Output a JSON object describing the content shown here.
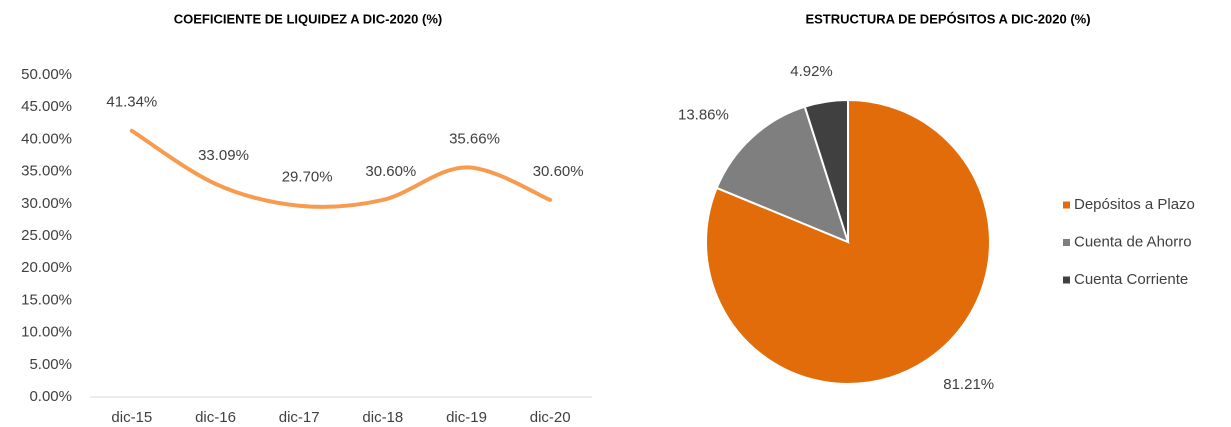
{
  "chart_data": [
    {
      "type": "line",
      "title": "COEFICIENTE DE LIQUIDEZ A DIC-2020 (%)",
      "categories": [
        "dic-15",
        "dic-16",
        "dic-17",
        "dic-18",
        "dic-19",
        "dic-20"
      ],
      "values": [
        41.34,
        33.09,
        29.7,
        30.6,
        35.66,
        30.6
      ],
      "value_labels": [
        "41.34%",
        "33.09%",
        "29.70%",
        "30.60%",
        "35.66%",
        "30.60%"
      ],
      "color": "#f79b4f",
      "smooth": true,
      "ylim": [
        0,
        50
      ],
      "yticks": [
        {
          "value": 0,
          "label": "0.00%"
        },
        {
          "value": 5,
          "label": "5.00%"
        },
        {
          "value": 10,
          "label": "10.00%"
        },
        {
          "value": 15,
          "label": "15.00%"
        },
        {
          "value": 20,
          "label": "20.00%"
        },
        {
          "value": 25,
          "label": "25.00%"
        },
        {
          "value": 30,
          "label": "30.00%"
        },
        {
          "value": 35,
          "label": "35.00%"
        },
        {
          "value": 40,
          "label": "40.00%"
        },
        {
          "value": 45,
          "label": "45.00%"
        },
        {
          "value": 50,
          "label": "50.00%"
        }
      ],
      "grid": false
    },
    {
      "type": "pie",
      "title": "ESTRUCTURA DE DEPÓSITOS A DIC-2020 (%)",
      "categories": [
        "Depósitos a Plazo",
        "Cuenta de Ahorro",
        "Cuenta Corriente"
      ],
      "values": [
        81.21,
        13.86,
        4.92
      ],
      "value_labels": [
        "81.21%",
        "13.86%",
        "4.92%"
      ],
      "colors": [
        "#e36c0a",
        "#7f7f7f",
        "#404040"
      ],
      "legend": "right"
    }
  ]
}
